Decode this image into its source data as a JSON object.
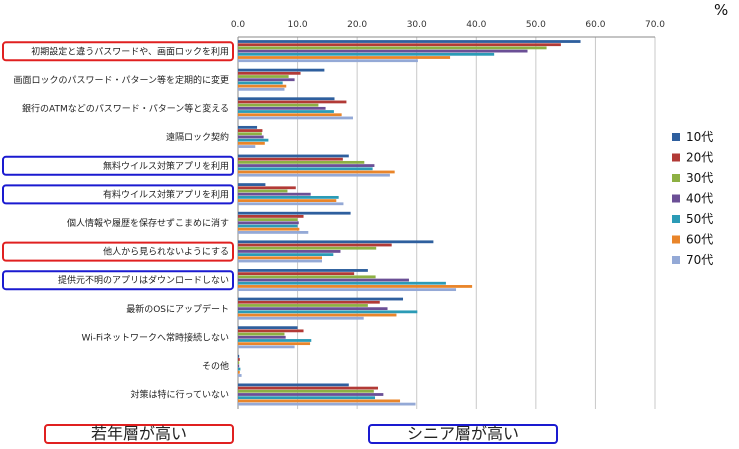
{
  "chart_data": {
    "type": "bar",
    "orientation": "horizontal",
    "unit": "%",
    "xlim": [
      0,
      70
    ],
    "xticks": [
      "0.0",
      "10.0",
      "20.0",
      "30.0",
      "40.0",
      "50.0",
      "60.0",
      "70.0"
    ],
    "grid": "vertical",
    "legend_position": "right",
    "categories": [
      "初期設定と違うパスワードや、画面ロックを利用",
      "画面ロックのパスワード・パターン等を定期的に変更",
      "銀行のATMなどのパスワード・パターン等と変える",
      "遠隔ロック契約",
      "無料ウイルス対策アプリを利用",
      "有料ウイルス対策アプリを利用",
      "個人情報や履歴を保存せずこまめに消す",
      "他人から見られないようにする",
      "提供元不明のアプリはダウンロードしない",
      "最新のOSにアップデート",
      "Wi-Fiネットワークへ常時接続しない",
      "その他",
      "対策は特に行っていない"
    ],
    "series": [
      {
        "name": "10代",
        "color": "#2e5f9e",
        "values": [
          57.5,
          14.5,
          16.2,
          3.2,
          18.6,
          4.6,
          18.9,
          32.8,
          21.8,
          27.7,
          10.0,
          0.2,
          18.6
        ]
      },
      {
        "name": "20代",
        "color": "#b23a36",
        "values": [
          54.2,
          10.5,
          18.2,
          4.1,
          17.6,
          9.7,
          11.0,
          25.8,
          19.5,
          23.8,
          11.0,
          0.3,
          23.5
        ]
      },
      {
        "name": "30代",
        "color": "#8db043",
        "values": [
          51.8,
          8.5,
          13.5,
          4.0,
          21.2,
          8.3,
          10.0,
          23.2,
          23.1,
          21.8,
          7.8,
          0.2,
          22.8
        ]
      },
      {
        "name": "40代",
        "color": "#6b4f96",
        "values": [
          48.6,
          9.5,
          14.7,
          4.3,
          22.9,
          12.2,
          10.2,
          17.2,
          28.7,
          25.1,
          8.0,
          0.2,
          24.4
        ]
      },
      {
        "name": "50代",
        "color": "#2b9bb6",
        "values": [
          43.0,
          7.5,
          16.1,
          5.1,
          22.6,
          16.9,
          10.0,
          16.0,
          34.9,
          30.1,
          12.3,
          0.4,
          23.0
        ]
      },
      {
        "name": "60代",
        "color": "#e9852a",
        "values": [
          35.6,
          8.1,
          17.4,
          4.5,
          26.3,
          16.5,
          10.3,
          14.1,
          39.3,
          26.6,
          12.1,
          0.3,
          27.2
        ]
      },
      {
        "name": "70代",
        "color": "#94a9d6",
        "values": [
          30.2,
          7.8,
          19.3,
          2.9,
          25.5,
          17.7,
          11.8,
          14.1,
          36.6,
          21.1,
          9.5,
          0.6,
          29.8
        ]
      }
    ],
    "highlights": {
      "young": [
        0,
        7
      ],
      "senior": [
        4,
        5,
        8
      ]
    }
  },
  "captions": {
    "young": "若年層が高い",
    "senior": "シニア層が高い"
  },
  "colors": {
    "young": "#e02020",
    "senior": "#1a1ad0"
  }
}
